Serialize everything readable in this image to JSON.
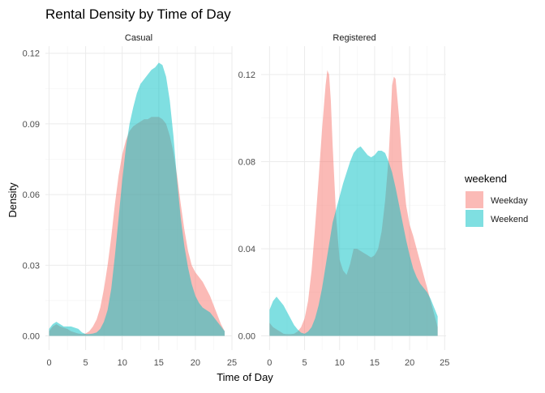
{
  "chart_data": {
    "type": "area",
    "title": "Rental Density by Time of Day",
    "xlabel": "Time of Day",
    "ylabel": "Density",
    "legend": {
      "title": "weekend",
      "position": "right",
      "entries": [
        {
          "name": "Weekday",
          "color": "#F8766D"
        },
        {
          "name": "Weekend",
          "color": "#00BFC4"
        }
      ]
    },
    "grid": true,
    "alpha": 0.5,
    "panels": [
      {
        "label": "Casual",
        "xlim": [
          -0.5,
          25
        ],
        "ylim": [
          -0.006,
          0.123
        ],
        "xticks": [
          0,
          5,
          10,
          15,
          20,
          25
        ],
        "xtick_labels": [
          "0",
          "5",
          "10",
          "15",
          "20",
          "25"
        ],
        "yticks": [
          0,
          0.03,
          0.06,
          0.09,
          0.12
        ],
        "ytick_labels": [
          "0.00",
          "0.03",
          "0.06",
          "0.09",
          "0.12"
        ],
        "series": [
          {
            "name": "Weekday",
            "x": [
              0,
              0.5,
              1,
              1.5,
              2,
              2.5,
              3,
              3.5,
              4,
              4.5,
              5,
              5.5,
              6,
              6.5,
              7,
              7.5,
              8,
              8.5,
              9,
              9.5,
              10,
              10.5,
              11,
              11.5,
              12,
              12.5,
              13,
              13.5,
              14,
              14.5,
              15,
              15.5,
              16,
              16.5,
              17,
              17.5,
              18,
              18.5,
              19,
              19.5,
              20,
              20.5,
              21,
              21.5,
              22,
              22.5,
              23,
              23.5,
              24
            ],
            "y": [
              0.002,
              0.004,
              0.005,
              0.004,
              0.0035,
              0.003,
              0.002,
              0.0015,
              0.001,
              0.0008,
              0.001,
              0.002,
              0.004,
              0.007,
              0.012,
              0.02,
              0.03,
              0.042,
              0.056,
              0.068,
              0.077,
              0.083,
              0.087,
              0.089,
              0.09,
              0.091,
              0.092,
              0.092,
              0.093,
              0.093,
              0.093,
              0.092,
              0.09,
              0.085,
              0.078,
              0.068,
              0.056,
              0.045,
              0.036,
              0.03,
              0.027,
              0.025,
              0.023,
              0.02,
              0.017,
              0.013,
              0.009,
              0.005,
              0.002
            ]
          },
          {
            "name": "Weekend",
            "x": [
              0,
              0.5,
              1,
              1.5,
              2,
              2.5,
              3,
              3.5,
              4,
              4.5,
              5,
              5.5,
              6,
              6.5,
              7,
              7.5,
              8,
              8.5,
              9,
              9.5,
              10,
              10.5,
              11,
              11.5,
              12,
              12.5,
              13,
              13.5,
              14,
              14.5,
              15,
              15.5,
              16,
              16.5,
              17,
              17.5,
              18,
              18.5,
              19,
              19.5,
              20,
              20.5,
              21,
              21.5,
              22,
              22.5,
              23,
              23.5,
              24
            ],
            "y": [
              0.003,
              0.005,
              0.006,
              0.005,
              0.004,
              0.004,
              0.004,
              0.0035,
              0.003,
              0.0015,
              0.0008,
              0.0008,
              0.001,
              0.0015,
              0.003,
              0.006,
              0.011,
              0.02,
              0.034,
              0.05,
              0.066,
              0.08,
              0.09,
              0.097,
              0.103,
              0.107,
              0.109,
              0.111,
              0.113,
              0.114,
              0.116,
              0.115,
              0.11,
              0.1,
              0.085,
              0.066,
              0.05,
              0.038,
              0.029,
              0.022,
              0.017,
              0.014,
              0.012,
              0.011,
              0.01,
              0.008,
              0.006,
              0.004,
              0.002
            ]
          }
        ]
      },
      {
        "label": "Registered",
        "xlim": [
          -1.2,
          25.2
        ],
        "ylim": [
          -0.0065,
          0.133
        ],
        "xticks": [
          0,
          5,
          10,
          15,
          20,
          25
        ],
        "xtick_labels": [
          "0",
          "5",
          "10",
          "15",
          "20",
          "25"
        ],
        "yticks": [
          0,
          0.04,
          0.08,
          0.12
        ],
        "ytick_labels": [
          "0.00",
          "0.04",
          "0.08",
          "0.12"
        ],
        "series": [
          {
            "name": "Weekday",
            "x": [
              0,
              0.5,
              1,
              1.5,
              2,
              2.5,
              3,
              3.5,
              4,
              4.5,
              5,
              5.5,
              6,
              6.5,
              7,
              7.5,
              8,
              8.25,
              8.5,
              8.75,
              9,
              9.5,
              10,
              10.5,
              11,
              11.5,
              12,
              12.5,
              13,
              13.5,
              14,
              14.5,
              15,
              15.5,
              16,
              16.5,
              17,
              17.25,
              17.5,
              17.75,
              18,
              18.5,
              19,
              19.5,
              20,
              20.5,
              21,
              21.5,
              22,
              22.5,
              23,
              23.5,
              24
            ],
            "y": [
              0.006,
              0.004,
              0.003,
              0.002,
              0.001,
              0.0008,
              0.0008,
              0.001,
              0.002,
              0.004,
              0.008,
              0.016,
              0.03,
              0.05,
              0.072,
              0.095,
              0.115,
              0.122,
              0.12,
              0.108,
              0.088,
              0.055,
              0.035,
              0.03,
              0.028,
              0.033,
              0.04,
              0.04,
              0.039,
              0.038,
              0.037,
              0.036,
              0.037,
              0.04,
              0.048,
              0.062,
              0.082,
              0.098,
              0.115,
              0.119,
              0.118,
              0.1,
              0.076,
              0.06,
              0.051,
              0.046,
              0.04,
              0.034,
              0.028,
              0.022,
              0.016,
              0.01,
              0.004
            ]
          },
          {
            "name": "Weekend",
            "x": [
              0,
              0.5,
              1,
              1.5,
              2,
              2.5,
              3,
              3.5,
              4,
              4.5,
              5,
              5.5,
              6,
              6.5,
              7,
              7.5,
              8,
              8.5,
              9,
              9.5,
              10,
              10.5,
              11,
              11.5,
              12,
              12.5,
              13,
              13.5,
              14,
              14.5,
              15,
              15.5,
              16,
              16.5,
              17,
              17.5,
              18,
              18.5,
              19,
              19.5,
              20,
              20.5,
              21,
              21.5,
              22,
              22.5,
              23,
              23.5,
              24
            ],
            "y": [
              0.012,
              0.016,
              0.018,
              0.016,
              0.014,
              0.011,
              0.008,
              0.005,
              0.003,
              0.0015,
              0.001,
              0.002,
              0.004,
              0.008,
              0.014,
              0.022,
              0.032,
              0.042,
              0.052,
              0.058,
              0.064,
              0.07,
              0.075,
              0.08,
              0.084,
              0.086,
              0.087,
              0.085,
              0.083,
              0.082,
              0.083,
              0.085,
              0.085,
              0.084,
              0.08,
              0.075,
              0.068,
              0.06,
              0.052,
              0.044,
              0.037,
              0.031,
              0.027,
              0.024,
              0.022,
              0.02,
              0.017,
              0.013,
              0.009
            ]
          }
        ]
      }
    ]
  }
}
